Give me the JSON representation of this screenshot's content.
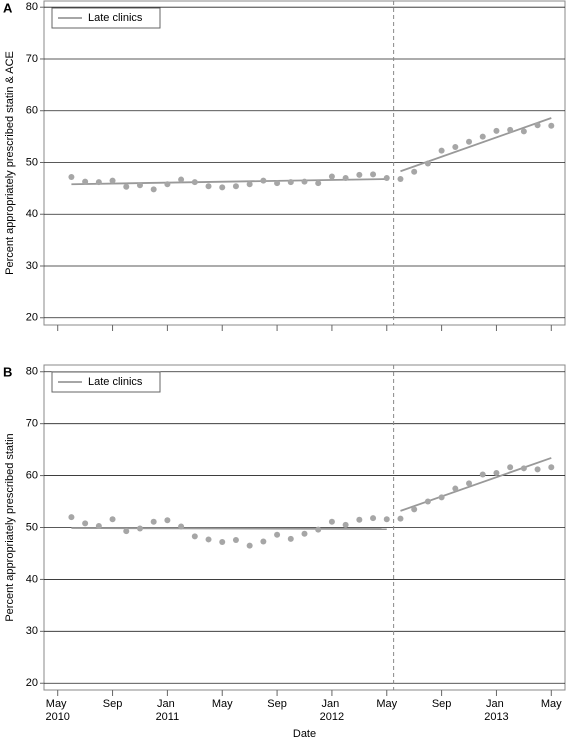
{
  "chart_data": [
    {
      "type": "scatter",
      "panel": "A",
      "ylabel": "Percent appropriately prescribed statin & ACE",
      "legend": "upper left",
      "grid": true,
      "xlim": [
        "2010-04",
        "2013-06"
      ],
      "ylim": [
        18.6,
        81.2
      ],
      "yticks": [
        20,
        30,
        40,
        50,
        60,
        70,
        80
      ],
      "xticks": [
        "2010-05",
        "2010-09",
        "2011-01",
        "2011-05",
        "2011-09",
        "2012-01",
        "2012-05",
        "2012-09",
        "2013-01",
        "2013-05"
      ],
      "series": [
        {
          "name": "Late clinics",
          "color": "#a6a6a6",
          "x": [
            "2010-06",
            "2010-07",
            "2010-08",
            "2010-09",
            "2010-10",
            "2010-11",
            "2010-12",
            "2011-01",
            "2011-02",
            "2011-03",
            "2011-04",
            "2011-05",
            "2011-06",
            "2011-07",
            "2011-08",
            "2011-09",
            "2011-10",
            "2011-11",
            "2011-12",
            "2012-01",
            "2012-02",
            "2012-03",
            "2012-04",
            "2012-05",
            "2012-06",
            "2012-07",
            "2012-08",
            "2012-09",
            "2012-10",
            "2012-11",
            "2012-12",
            "2013-01",
            "2013-02",
            "2013-03",
            "2013-04",
            "2013-05"
          ],
          "values": [
            47.2,
            46.3,
            46.2,
            46.5,
            45.3,
            45.6,
            44.8,
            45.8,
            46.7,
            46.2,
            45.4,
            45.2,
            45.4,
            45.8,
            46.5,
            46.0,
            46.2,
            46.3,
            46.0,
            47.3,
            47.0,
            47.6,
            47.7,
            47.0,
            46.8,
            48.2,
            49.8,
            52.3,
            53.0,
            54.0,
            55.0,
            56.1,
            56.3,
            56.0,
            57.2,
            57.1
          ]
        }
      ],
      "fit": [
        {
          "x": [
            "2010-06",
            "2012-05"
          ],
          "values": [
            45.8,
            46.8
          ]
        },
        {
          "x": [
            "2012-06",
            "2013-05"
          ],
          "values": [
            48.3,
            58.6
          ]
        }
      ]
    },
    {
      "type": "scatter",
      "panel": "B",
      "ylabel": "Percent appropriately prescribed statin",
      "xlabel": "Date",
      "legend": "upper left",
      "grid": true,
      "xlim": [
        "2010-04",
        "2013-06"
      ],
      "ylim": [
        18.7,
        81.3
      ],
      "yticks": [
        20,
        30,
        40,
        50,
        60,
        70,
        80
      ],
      "xticks": [
        {
          "value": "2010-05",
          "label": "May 2010"
        },
        {
          "value": "2010-09",
          "label": "Sep"
        },
        {
          "value": "2011-01",
          "label": "Jan 2011"
        },
        {
          "value": "2011-05",
          "label": "May"
        },
        {
          "value": "2011-09",
          "label": "Sep"
        },
        {
          "value": "2012-01",
          "label": "Jan 2012"
        },
        {
          "value": "2012-05",
          "label": "May"
        },
        {
          "value": "2012-09",
          "label": "Sep"
        },
        {
          "value": "2013-01",
          "label": "Jan 2013"
        },
        {
          "value": "2013-05",
          "label": "May"
        }
      ],
      "series": [
        {
          "name": "Late clinics",
          "color": "#a6a6a6",
          "x": [
            "2010-06",
            "2010-07",
            "2010-08",
            "2010-09",
            "2010-10",
            "2010-11",
            "2010-12",
            "2011-01",
            "2011-02",
            "2011-03",
            "2011-04",
            "2011-05",
            "2011-06",
            "2011-07",
            "2011-08",
            "2011-09",
            "2011-10",
            "2011-11",
            "2011-12",
            "2012-01",
            "2012-02",
            "2012-03",
            "2012-04",
            "2012-05",
            "2012-06",
            "2012-07",
            "2012-08",
            "2012-09",
            "2012-10",
            "2012-11",
            "2012-12",
            "2013-01",
            "2013-02",
            "2013-03",
            "2013-04",
            "2013-05"
          ],
          "values": [
            52.0,
            50.8,
            50.3,
            51.6,
            49.3,
            49.8,
            51.1,
            51.4,
            50.2,
            48.3,
            47.7,
            47.2,
            47.6,
            46.5,
            47.3,
            48.6,
            47.8,
            48.8,
            49.6,
            51.1,
            50.5,
            51.5,
            51.8,
            51.6,
            51.7,
            53.5,
            55.0,
            55.8,
            57.5,
            58.5,
            60.2,
            60.5,
            61.6,
            61.4,
            61.2,
            61.6
          ]
        }
      ],
      "fit": [
        {
          "x": [
            "2010-06",
            "2012-05"
          ],
          "values": [
            49.9,
            49.7
          ]
        },
        {
          "x": [
            "2012-06",
            "2013-05"
          ],
          "values": [
            53.2,
            63.4
          ]
        }
      ]
    }
  ]
}
